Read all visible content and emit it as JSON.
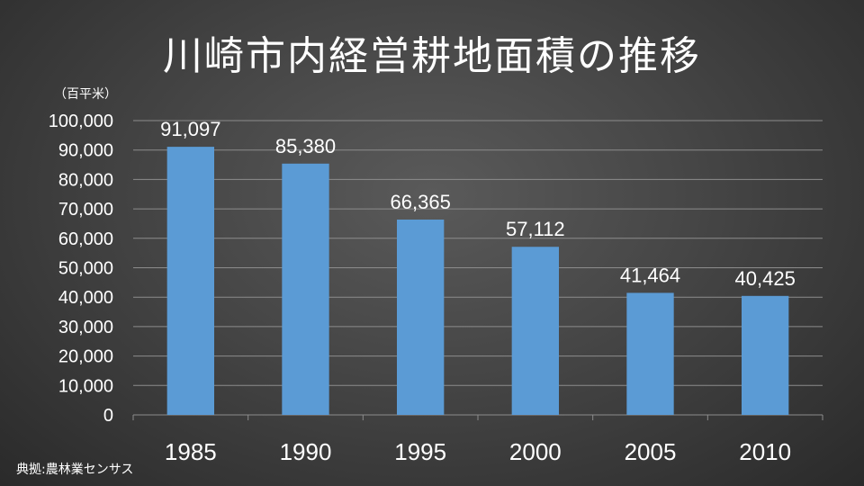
{
  "chart_data": {
    "type": "bar",
    "title": "川崎市内経営耕地面積の推移",
    "unit_label": "（百平米）",
    "source": "典拠:農林業センサス",
    "categories": [
      "1985",
      "1990",
      "1995",
      "2000",
      "2005",
      "2010"
    ],
    "values": [
      91097,
      85380,
      66365,
      57112,
      41464,
      40425
    ],
    "data_labels": [
      "91,097",
      "85,380",
      "66,365",
      "57,112",
      "41,464",
      "40,425"
    ],
    "ylim": [
      0,
      100000
    ],
    "yticks": [
      0,
      10000,
      20000,
      30000,
      40000,
      50000,
      60000,
      70000,
      80000,
      90000,
      100000
    ],
    "ytick_labels": [
      "0",
      "10,000",
      "20,000",
      "30,000",
      "40,000",
      "50,000",
      "60,000",
      "70,000",
      "80,000",
      "90,000",
      "100,000"
    ],
    "grid": true,
    "legend": "none",
    "colors": {
      "bar": "#5b9bd5",
      "grid": "#8c8c8c",
      "text": "#ffffff"
    }
  }
}
